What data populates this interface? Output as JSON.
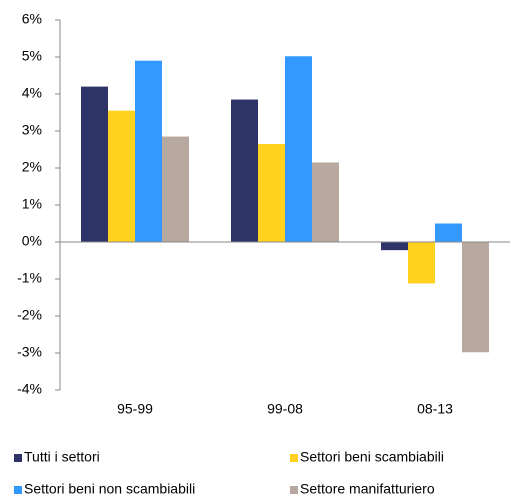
{
  "chart_data": {
    "type": "bar",
    "categories": [
      "95-99",
      "99-08",
      "08-13"
    ],
    "series": [
      {
        "name": "Tutti i settori",
        "color": "#2e3468",
        "values": [
          4.2,
          3.85,
          -0.22
        ]
      },
      {
        "name": "Settori beni scambiabili",
        "color": "#ffd21f",
        "values": [
          3.55,
          2.65,
          -1.12
        ]
      },
      {
        "name": "Settori beni non scambiabili",
        "color": "#3399ff",
        "values": [
          4.9,
          5.02,
          0.5
        ]
      },
      {
        "name": "Settore manifatturiero",
        "color": "#b8a9a0",
        "values": [
          2.85,
          2.15,
          -2.98
        ]
      }
    ],
    "ylim": [
      -4,
      6
    ],
    "yticks": [
      {
        "value": -4,
        "label": "-4%"
      },
      {
        "value": -3,
        "label": "-3%"
      },
      {
        "value": -2,
        "label": "-2%"
      },
      {
        "value": -1,
        "label": "-1%"
      },
      {
        "value": 0,
        "label": "0%"
      },
      {
        "value": 1,
        "label": "1%"
      },
      {
        "value": 2,
        "label": "2%"
      },
      {
        "value": 3,
        "label": "3%"
      },
      {
        "value": 4,
        "label": "4%"
      },
      {
        "value": 5,
        "label": "5%"
      },
      {
        "value": 6,
        "label": "6%"
      }
    ],
    "grid": false
  }
}
